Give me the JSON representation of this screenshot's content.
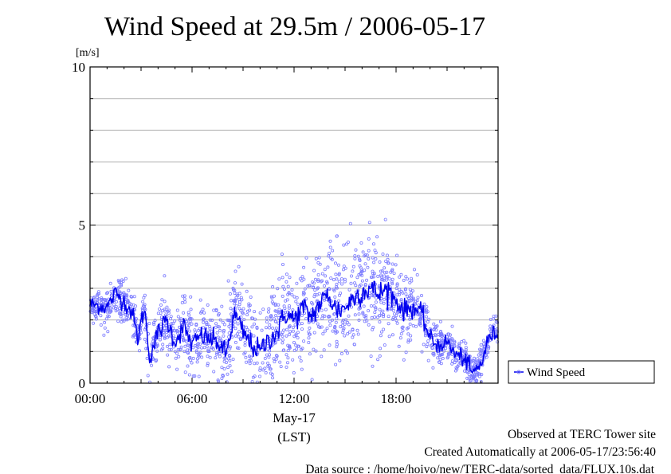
{
  "chart_data": {
    "type": "scatter",
    "title": "Wind Speed at 29.5m / 2006-05-17",
    "ylabel": "[m/s]",
    "ylim": [
      0,
      10
    ],
    "xlim_hours": [
      0,
      24
    ],
    "y_major_ticks": [
      0,
      5,
      10
    ],
    "y_gridlines": [
      1,
      2,
      3,
      4,
      5,
      6,
      7,
      8,
      9
    ],
    "x_tick_labels": [
      {
        "hour": 0,
        "label": "00:00"
      },
      {
        "hour": 6,
        "label": "06:00"
      },
      {
        "hour": 12,
        "label": "12:00"
      },
      {
        "hour": 18,
        "label": "18:00"
      }
    ],
    "x_date_label": "May-17",
    "x_axis_label": "(LST)",
    "legend": {
      "label": "Wind Speed",
      "placement": "right"
    },
    "series": [
      {
        "name": "Wind Speed",
        "style": "points + running mean line",
        "color_points": "#7b7bff",
        "color_line": "#0000ee",
        "mean_profile": [
          {
            "h": 0.0,
            "v": 2.5
          },
          {
            "h": 0.5,
            "v": 2.45
          },
          {
            "h": 1.0,
            "v": 2.4
          },
          {
            "h": 1.5,
            "v": 2.85
          },
          {
            "h": 2.0,
            "v": 2.6
          },
          {
            "h": 2.5,
            "v": 2.2
          },
          {
            "h": 2.8,
            "v": 1.4
          },
          {
            "h": 3.2,
            "v": 2.4
          },
          {
            "h": 3.5,
            "v": 0.8
          },
          {
            "h": 4.0,
            "v": 1.6
          },
          {
            "h": 4.5,
            "v": 2.0
          },
          {
            "h": 5.0,
            "v": 1.3
          },
          {
            "h": 5.5,
            "v": 1.8
          },
          {
            "h": 6.0,
            "v": 1.2
          },
          {
            "h": 6.5,
            "v": 1.5
          },
          {
            "h": 7.0,
            "v": 1.4
          },
          {
            "h": 7.5,
            "v": 1.3
          },
          {
            "h": 8.0,
            "v": 0.9
          },
          {
            "h": 8.5,
            "v": 2.2
          },
          {
            "h": 9.0,
            "v": 1.6
          },
          {
            "h": 9.5,
            "v": 1.2
          },
          {
            "h": 10.0,
            "v": 1.0
          },
          {
            "h": 10.5,
            "v": 1.4
          },
          {
            "h": 11.0,
            "v": 1.6
          },
          {
            "h": 11.5,
            "v": 2.2
          },
          {
            "h": 12.0,
            "v": 2.0
          },
          {
            "h": 12.5,
            "v": 2.4
          },
          {
            "h": 13.0,
            "v": 2.1
          },
          {
            "h": 13.5,
            "v": 2.5
          },
          {
            "h": 14.0,
            "v": 2.8
          },
          {
            "h": 14.5,
            "v": 2.3
          },
          {
            "h": 15.0,
            "v": 2.4
          },
          {
            "h": 15.5,
            "v": 2.7
          },
          {
            "h": 16.0,
            "v": 2.9
          },
          {
            "h": 16.5,
            "v": 3.0
          },
          {
            "h": 17.0,
            "v": 2.8
          },
          {
            "h": 17.5,
            "v": 3.0
          },
          {
            "h": 18.0,
            "v": 2.6
          },
          {
            "h": 18.5,
            "v": 2.3
          },
          {
            "h": 19.0,
            "v": 2.4
          },
          {
            "h": 19.5,
            "v": 2.2
          },
          {
            "h": 20.0,
            "v": 1.4
          },
          {
            "h": 20.5,
            "v": 1.2
          },
          {
            "h": 21.0,
            "v": 1.3
          },
          {
            "h": 21.5,
            "v": 0.9
          },
          {
            "h": 22.0,
            "v": 0.8
          },
          {
            "h": 22.5,
            "v": 0.3
          },
          {
            "h": 23.0,
            "v": 0.6
          },
          {
            "h": 23.5,
            "v": 1.5
          },
          {
            "h": 24.0,
            "v": 1.6
          }
        ],
        "scatter_spread_profile": [
          {
            "h": 0,
            "s": 0.25
          },
          {
            "h": 3,
            "s": 0.5
          },
          {
            "h": 8,
            "s": 0.7
          },
          {
            "h": 11,
            "s": 0.9
          },
          {
            "h": 14,
            "s": 1.0
          },
          {
            "h": 17,
            "s": 1.1
          },
          {
            "h": 19,
            "s": 0.55
          },
          {
            "h": 21,
            "s": 0.3
          },
          {
            "h": 24,
            "s": 0.3
          }
        ],
        "approx_max": 5.2,
        "approx_min": 0.05
      }
    ]
  },
  "footer": {
    "line1": "Observed at TERC Tower site",
    "line2": "Created Automatically at 2006-05-17/23:56:40",
    "line3": "Data source : /home/hoivo/new/TERC-data/sorted_data/FLUX.10s.dat"
  },
  "colors": {
    "points": "#7b7bff",
    "line": "#0000ee",
    "grid": "#b0b0b0",
    "frame": "#000000"
  }
}
